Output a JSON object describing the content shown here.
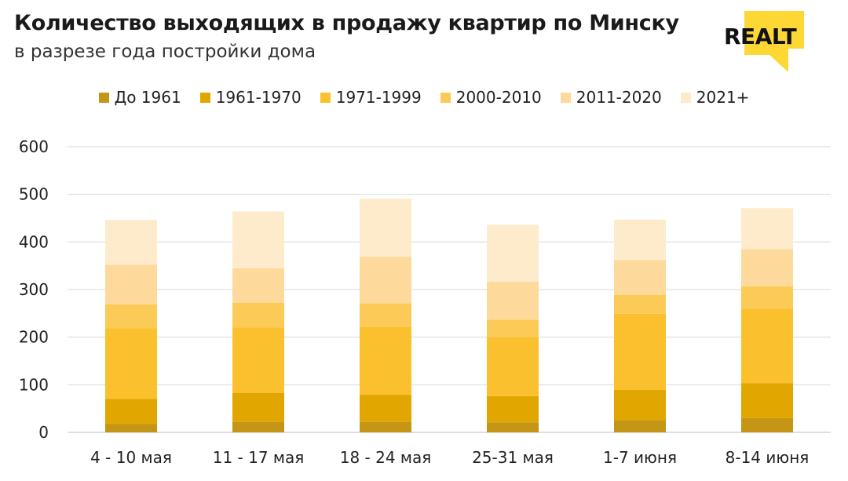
{
  "header": {
    "title": "Количество выходящих в продажу квартир по Минску",
    "subtitle": "в разрезе года постройки дома",
    "logo_text": "REALT",
    "logo_color": "#FDD835"
  },
  "chart_data": {
    "type": "bar",
    "stacked": true,
    "categories": [
      "4 - 10 мая",
      "11 - 17 мая",
      "18 - 24 мая",
      "25-31 мая",
      "1-7 июня",
      "8-14 июня"
    ],
    "series": [
      {
        "name": "До 1961",
        "color": "#C59516",
        "values": [
          18,
          22,
          22,
          21,
          26,
          30
        ]
      },
      {
        "name": "1961-1970",
        "color": "#E2A600",
        "values": [
          52,
          61,
          57,
          55,
          63,
          73
        ]
      },
      {
        "name": "1971-1999",
        "color": "#FBC02D",
        "values": [
          149,
          137,
          142,
          124,
          160,
          157
        ]
      },
      {
        "name": "2000-2010",
        "color": "#FCCB57",
        "values": [
          50,
          52,
          50,
          37,
          40,
          47
        ]
      },
      {
        "name": "2011-2020",
        "color": "#FDDA9C",
        "values": [
          83,
          73,
          98,
          80,
          73,
          78
        ]
      },
      {
        "name": "2021+",
        "color": "#FEEBCB",
        "values": [
          94,
          119,
          122,
          119,
          85,
          86
        ]
      }
    ],
    "ylim": [
      0,
      600
    ],
    "yticks": [
      0,
      100,
      200,
      300,
      400,
      500,
      600
    ],
    "grid": true,
    "legend_position": "top-center"
  }
}
